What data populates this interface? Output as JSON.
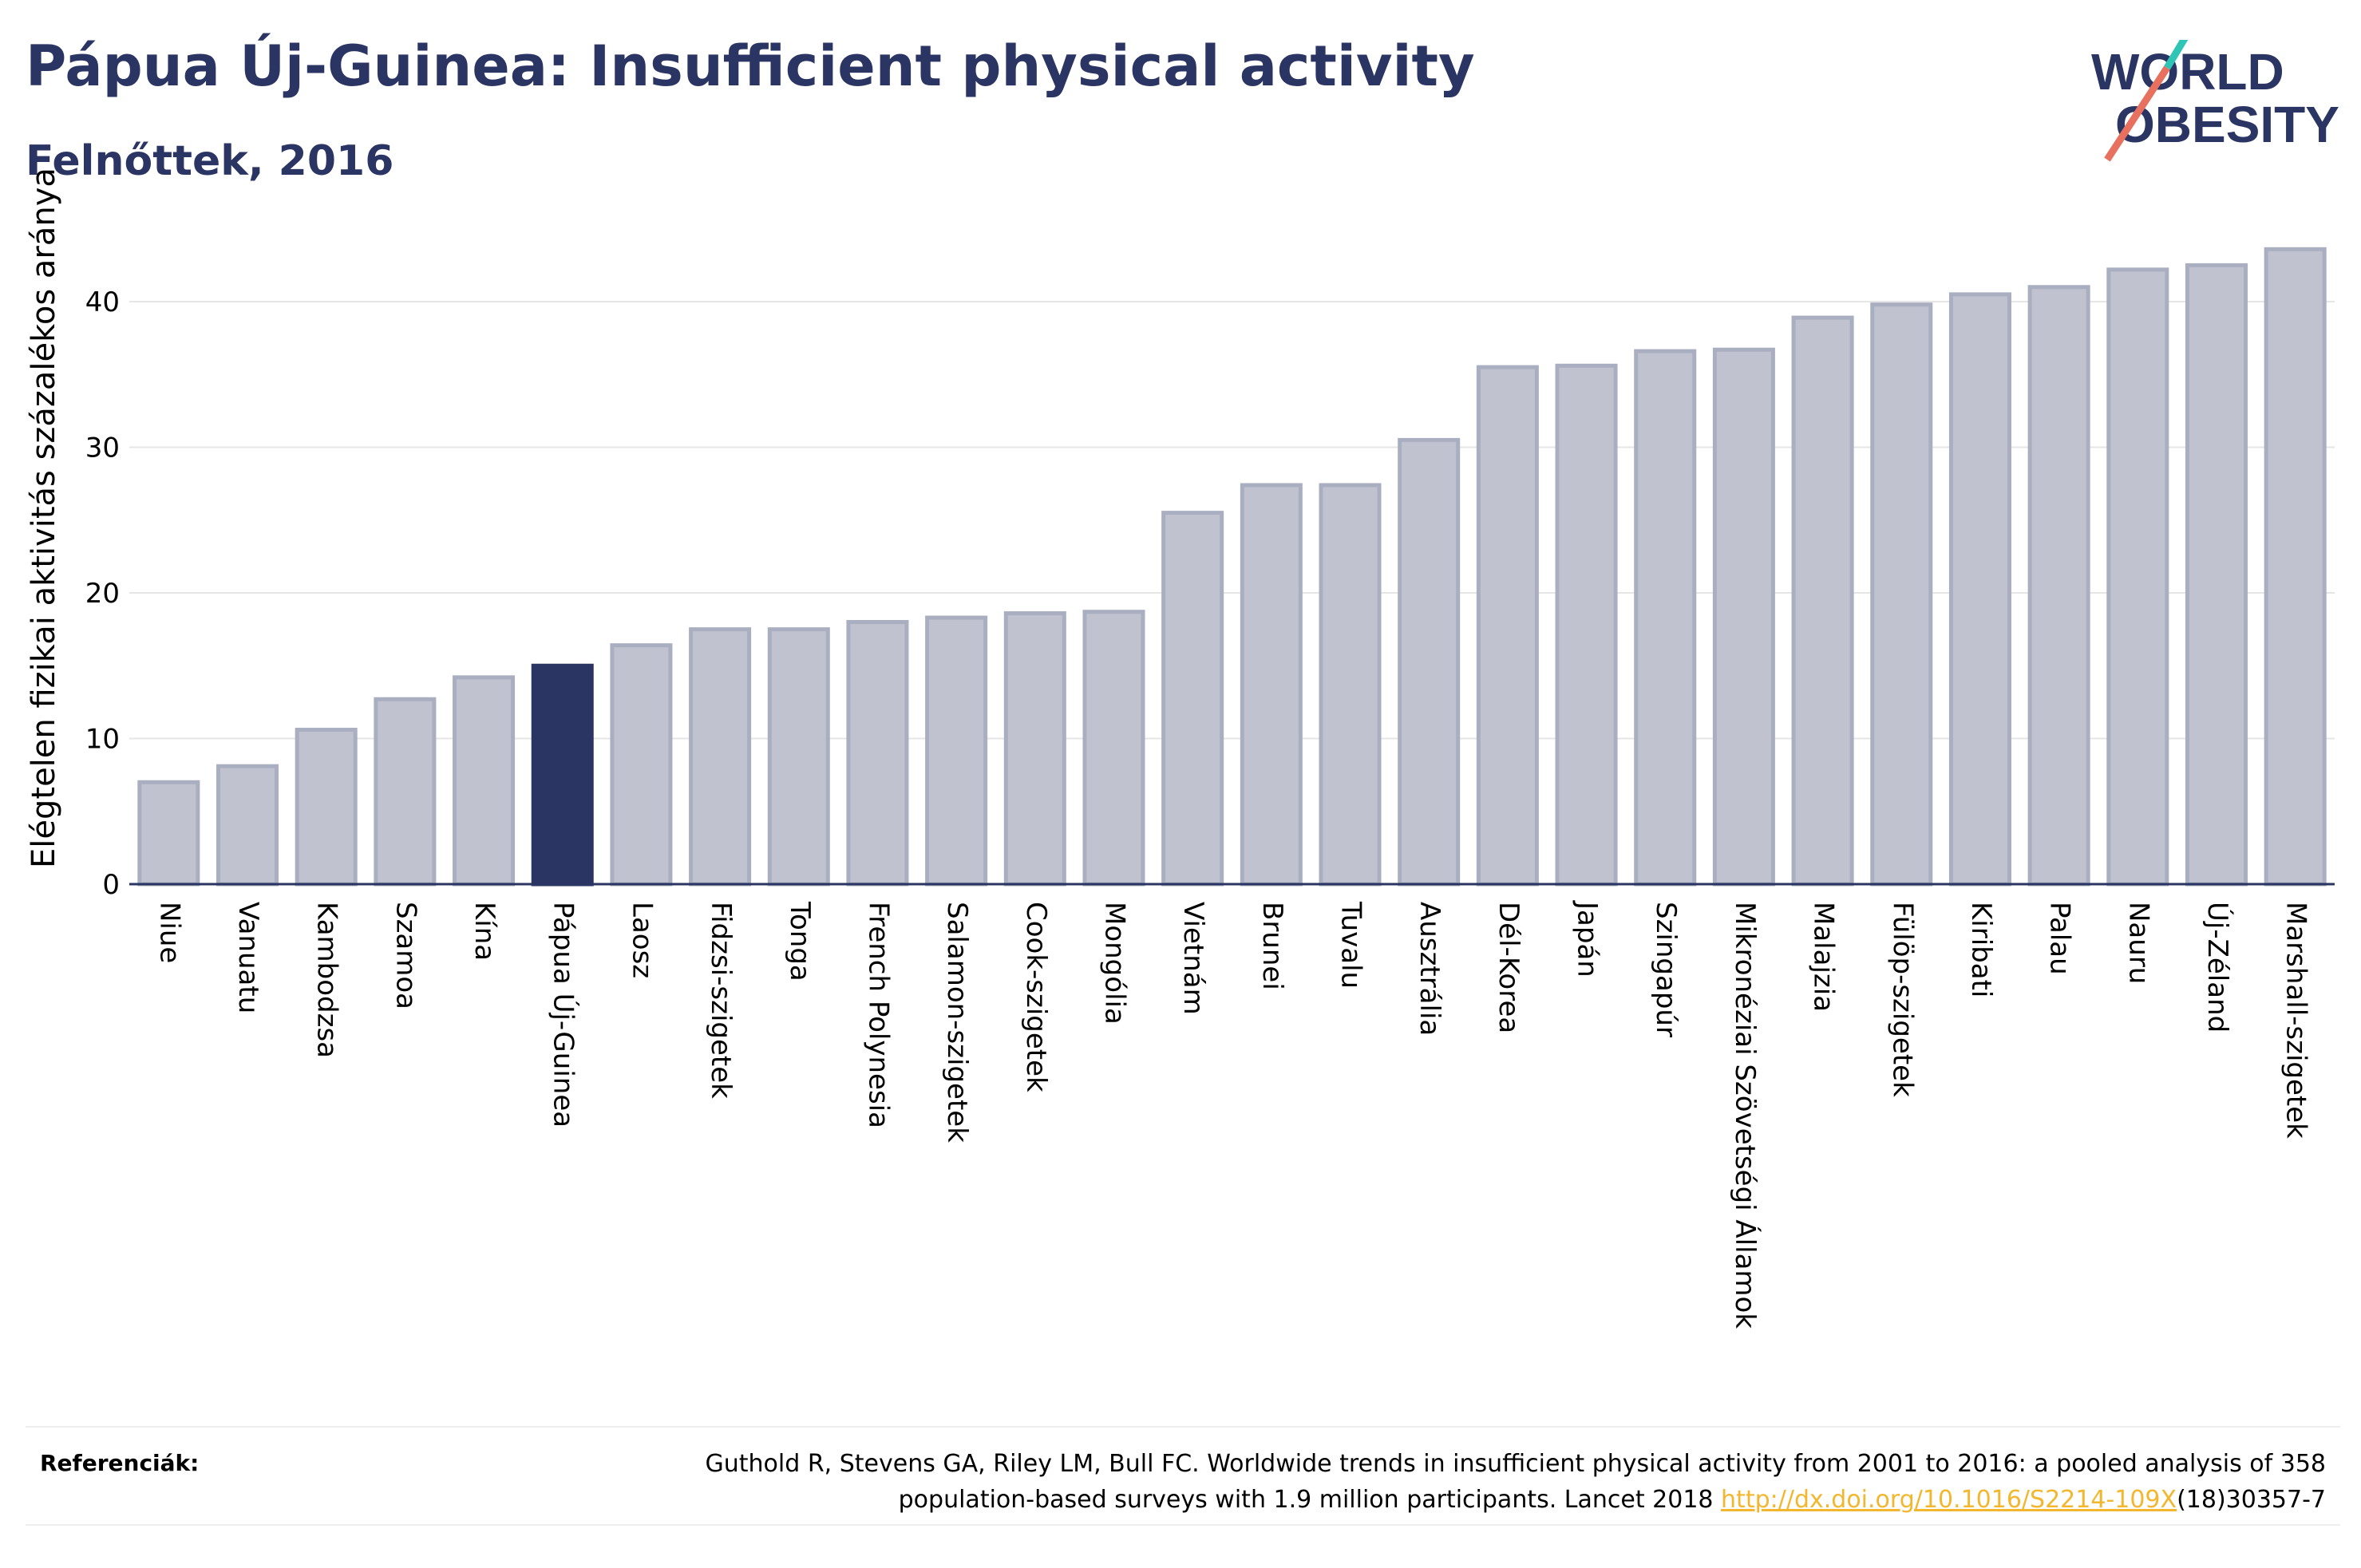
{
  "header": {
    "title": "Pápua Új-Guinea: Insufficient physical activity",
    "subtitle": "Felnőttek, 2016"
  },
  "logo": {
    "line1": "WORLD",
    "line2": "OBESITY",
    "text_color": "#2b3563",
    "slash_colors": [
      "#e8705f",
      "#2ec4b6"
    ]
  },
  "chart_data": {
    "type": "bar",
    "ylabel": "Elégtelen fizikai aktivitás százalékos aránya",
    "xlabel": "",
    "ylim": [
      0,
      45
    ],
    "yticks": [
      0,
      10,
      20,
      30,
      40
    ],
    "grid": true,
    "highlight_category": "Pápua Új-Guinea",
    "colors": {
      "bar": "#c0c3cf",
      "bar_edge": "#a9aec0",
      "highlight": "#2b3563",
      "grid": "#e6e6e6",
      "axis": "#2b3563"
    },
    "categories": [
      "Niue",
      "Vanuatu",
      "Kambodzsa",
      "Szamoa",
      "Kína",
      "Pápua Új-Guinea",
      "Laosz",
      "Fidzsi-szigetek",
      "Tonga",
      "French Polynesia",
      "Salamon-szigetek",
      "Cook-szigetek",
      "Mongólia",
      "Vietnám",
      "Brunei",
      "Tuvalu",
      "Ausztrália",
      "Dél-Korea",
      "Japán",
      "Szingapúr",
      "Mikronéziai Szövetségi Államok",
      "Malajzia",
      "Fülöp-szigetek",
      "Kiribati",
      "Palau",
      "Nauru",
      "Új-Zéland",
      "Marshall-szigetek"
    ],
    "values": [
      7.0,
      8.1,
      10.6,
      12.7,
      14.2,
      15.0,
      16.4,
      17.5,
      17.5,
      18.0,
      18.3,
      18.6,
      18.7,
      25.5,
      27.4,
      27.4,
      30.5,
      35.5,
      35.6,
      36.6,
      36.7,
      38.9,
      39.8,
      40.5,
      41.0,
      42.2,
      42.5,
      43.6
    ]
  },
  "references": {
    "label": "Referenciák:",
    "text": "Guthold R, Stevens GA, Riley LM, Bull FC. Worldwide trends in insufficient physical activity from 2001 to 2016: a pooled analysis of 358 population-based surveys with 1.9 million participants. Lancet 2018 ",
    "link": "http://dx.doi.org/10.1016/S2214-109X",
    "suffix": "(18)30357-7"
  }
}
